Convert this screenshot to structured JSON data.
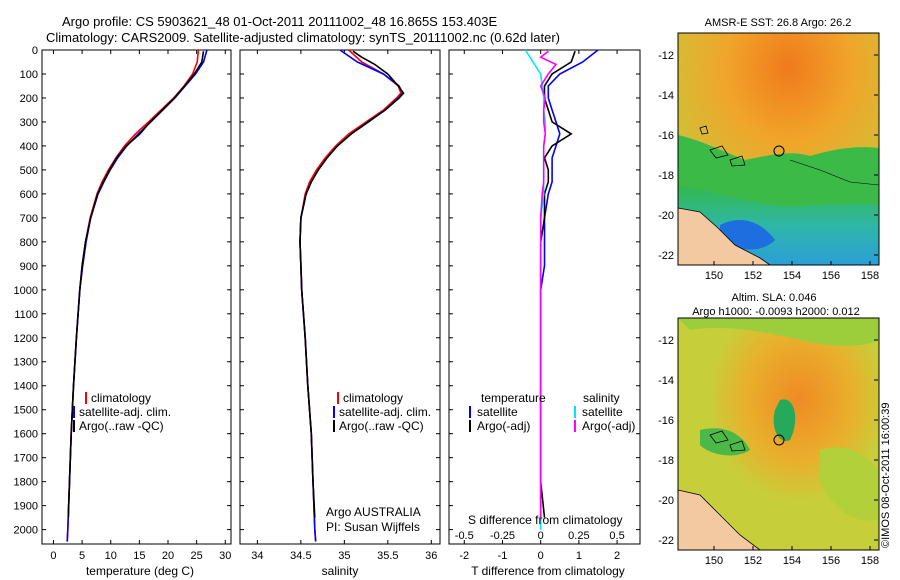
{
  "header": {
    "line1": "Argo profile: CS 5903621_48 01-Oct-2011 20111002_48 16.865S 153.403E",
    "line2": "Climatology: CARS2009. Satellite-adjusted climatology: synTS_20111002.nc (0.62d later)"
  },
  "colors": {
    "climatology": "#ff0000",
    "satellite": "#0000ff",
    "argo": "#000000",
    "salinity_satellite": "#00e5ff",
    "salinity_argo": "#ff00ff"
  },
  "depth_axis": {
    "ticks": [
      0,
      100,
      200,
      300,
      400,
      500,
      600,
      700,
      800,
      900,
      1000,
      1100,
      1200,
      1300,
      1400,
      1500,
      1600,
      1700,
      1800,
      1900,
      2000
    ],
    "ylim": [
      0,
      2060
    ]
  },
  "chart_data": [
    {
      "type": "line",
      "name": "temperature",
      "xlabel": "temperature (deg C)",
      "xlim": [
        -2,
        31
      ],
      "xticks": [
        0,
        5,
        10,
        15,
        20,
        25,
        30
      ],
      "legend": [
        "climatology",
        "satellite-adj. clim.",
        "Argo(..raw -QC)"
      ],
      "series": [
        {
          "name": "climatology",
          "color": "red",
          "depth": [
            0,
            50,
            100,
            150,
            200,
            250,
            300,
            350,
            400,
            450,
            500,
            550,
            600,
            700,
            800,
            900,
            1000,
            1200,
            1400,
            1600,
            1800,
            2000,
            2050
          ],
          "values": [
            25.3,
            25.1,
            24.3,
            22.8,
            21.0,
            18.8,
            16.6,
            14.3,
            12.4,
            10.9,
            9.6,
            8.5,
            7.6,
            6.4,
            5.6,
            5.0,
            4.6,
            4.0,
            3.5,
            3.1,
            2.8,
            2.5,
            2.4
          ]
        },
        {
          "name": "satellite-adj. clim.",
          "color": "blue",
          "depth": [
            0,
            50,
            100,
            150,
            200,
            250,
            300,
            350,
            400,
            450,
            500,
            550,
            600,
            700,
            800,
            900,
            1000,
            1200,
            1400,
            1600,
            1800,
            2000,
            2050
          ],
          "values": [
            26.8,
            26.2,
            24.8,
            23.0,
            21.2,
            19.1,
            17.0,
            14.8,
            12.8,
            11.2,
            9.9,
            8.8,
            7.8,
            6.5,
            5.7,
            5.1,
            4.6,
            4.0,
            3.5,
            3.1,
            2.8,
            2.5,
            2.4
          ]
        },
        {
          "name": "Argo(..raw -QC)",
          "color": "black",
          "depth": [
            5,
            50,
            100,
            150,
            200,
            250,
            300,
            350,
            400,
            450,
            500,
            550,
            600,
            700,
            800,
            900,
            1000,
            1200,
            1400,
            1600,
            1800,
            1950
          ],
          "values": [
            26.2,
            25.9,
            24.6,
            22.9,
            21.1,
            19.0,
            16.9,
            15.1,
            12.7,
            11.0,
            9.8,
            8.7,
            7.7,
            6.5,
            5.6,
            5.0,
            4.6,
            4.0,
            3.5,
            3.1,
            2.8,
            2.6
          ]
        }
      ]
    },
    {
      "type": "line",
      "name": "salinity",
      "xlabel": "salinity",
      "xlim": [
        33.8,
        36.1
      ],
      "xticks": [
        34,
        34.5,
        35,
        35.5,
        36
      ],
      "xticklabels": [
        "34",
        "34.5",
        "35",
        "35.5",
        "36"
      ],
      "legend": [
        "climatology",
        "satellite-adj. clim.",
        "Argo(..raw -QC)"
      ],
      "annotation": [
        "Argo AUSTRALIA",
        "PI: Susan Wijffels"
      ],
      "series": [
        {
          "name": "climatology",
          "color": "red",
          "depth": [
            0,
            50,
            100,
            150,
            180,
            200,
            250,
            300,
            350,
            400,
            450,
            500,
            550,
            600,
            700,
            800,
            900,
            1000,
            1200,
            1400,
            1600,
            1800,
            2000,
            2050
          ],
          "values": [
            35.05,
            35.2,
            35.45,
            35.62,
            35.65,
            35.6,
            35.45,
            35.25,
            35.05,
            34.9,
            34.78,
            34.68,
            34.6,
            34.55,
            34.5,
            34.49,
            34.5,
            34.51,
            34.55,
            34.58,
            34.62,
            34.64,
            34.66,
            34.67
          ]
        },
        {
          "name": "satellite-adj. clim.",
          "color": "blue",
          "depth": [
            0,
            50,
            100,
            150,
            180,
            200,
            250,
            300,
            350,
            400,
            450,
            500,
            550,
            600,
            700,
            800,
            900,
            1000,
            1200,
            1400,
            1600,
            1800,
            2000,
            2050
          ],
          "values": [
            34.95,
            35.15,
            35.45,
            35.63,
            35.67,
            35.62,
            35.47,
            35.28,
            35.08,
            34.92,
            34.8,
            34.7,
            34.62,
            34.56,
            34.5,
            34.49,
            34.5,
            34.51,
            34.55,
            34.58,
            34.62,
            34.64,
            34.66,
            34.67
          ]
        },
        {
          "name": "Argo(..raw -QC)",
          "color": "black",
          "depth": [
            5,
            30,
            60,
            100,
            150,
            180,
            200,
            250,
            300,
            350,
            400,
            450,
            500,
            550,
            600,
            700,
            800,
            900,
            1000,
            1200,
            1400,
            1600,
            1800,
            1950
          ],
          "values": [
            35.1,
            35.2,
            35.35,
            35.5,
            35.62,
            35.68,
            35.63,
            35.47,
            35.27,
            35.08,
            34.92,
            34.8,
            34.7,
            34.62,
            34.56,
            34.5,
            34.49,
            34.5,
            34.51,
            34.55,
            34.58,
            34.62,
            34.64,
            34.66
          ]
        }
      ]
    },
    {
      "type": "line",
      "name": "differences",
      "xlabel": "T difference from climatology",
      "xlim": [
        -2.4,
        2.6
      ],
      "xticks": [
        -2,
        -1,
        0,
        1,
        2
      ],
      "top_axis_label": "S difference from climatology",
      "top_ticks": [
        "-0.5",
        "-0.25",
        "0",
        "0.25",
        "0.5"
      ],
      "legend_temperature": [
        "temperature",
        "satellite",
        "Argo(-adj)"
      ],
      "legend_salinity": [
        "salinity",
        "satellite",
        "Argo(-adj)"
      ],
      "series": [
        {
          "name": "T satellite",
          "color": "blue",
          "depth": [
            0,
            50,
            100,
            150,
            200,
            250,
            300,
            350,
            400,
            450,
            500,
            550,
            600,
            700,
            800,
            900,
            1000,
            1200,
            1400,
            1600,
            1800,
            2000
          ],
          "values": [
            1.5,
            1.1,
            0.5,
            0.2,
            0.2,
            0.3,
            0.4,
            0.5,
            0.4,
            0.3,
            0.3,
            0.3,
            0.2,
            0.1,
            0.1,
            0.1,
            0.0,
            0.0,
            0.0,
            0.0,
            0.0,
            0.0
          ]
        },
        {
          "name": "T Argo(-adj)",
          "color": "black",
          "depth": [
            5,
            50,
            100,
            150,
            200,
            250,
            300,
            350,
            400,
            450,
            500,
            550,
            600,
            700,
            800,
            900,
            1000,
            1200,
            1400,
            1600,
            1800,
            1950
          ],
          "values": [
            0.9,
            0.8,
            0.3,
            0.1,
            0.1,
            0.2,
            0.3,
            0.8,
            0.3,
            0.1,
            0.2,
            0.2,
            0.1,
            0.1,
            0.0,
            0.0,
            0.0,
            0.0,
            0.0,
            0.0,
            0.0,
            0.1
          ]
        },
        {
          "name": "S satellite",
          "color": "cyan",
          "depth": [
            0,
            50,
            100,
            150,
            200,
            250,
            300,
            350,
            400,
            450,
            500,
            550,
            600,
            700,
            800,
            900,
            1000,
            1200,
            1400,
            1600,
            1800,
            2000
          ],
          "values": [
            -0.1,
            -0.05,
            0.0,
            0.01,
            0.02,
            0.02,
            0.03,
            0.03,
            0.02,
            0.02,
            0.02,
            0.02,
            0.02,
            0.0,
            0.0,
            0.0,
            0.0,
            0.0,
            0.0,
            0.0,
            0.0,
            0.0
          ]
        },
        {
          "name": "S Argo(-adj)",
          "color": "magenta",
          "depth": [
            5,
            30,
            60,
            100,
            150,
            200,
            250,
            300,
            350,
            400,
            450,
            500,
            550,
            600,
            700,
            800,
            900,
            1000,
            1200,
            1400,
            1600,
            1800,
            1950
          ],
          "values": [
            0.05,
            0.0,
            0.1,
            0.05,
            0.0,
            0.03,
            0.02,
            0.02,
            0.03,
            0.02,
            0.02,
            0.02,
            0.02,
            0.01,
            0.0,
            0.0,
            0.0,
            0.0,
            0.0,
            0.0,
            0.0,
            0.0,
            0.0
          ]
        }
      ]
    }
  ],
  "maps": [
    {
      "title": "AMSR-E SST: 26.8 Argo: 26.2",
      "yticks": [
        "-12",
        "-14",
        "-16",
        "-18",
        "-20",
        "-22"
      ],
      "xticks": [
        "150",
        "152",
        "154",
        "156",
        "158"
      ]
    },
    {
      "title_line1": "Altim. SLA: 0.046",
      "title_line2": "Argo h1000: -0.0093 h2000: 0.012",
      "yticks": [
        "-12",
        "-14",
        "-16",
        "-18",
        "-20",
        "-22"
      ],
      "xticks": [
        "150",
        "152",
        "154",
        "156",
        "158"
      ]
    }
  ],
  "footer": {
    "stamp": "©IMOS 08-Oct-2011 16:00:39"
  }
}
